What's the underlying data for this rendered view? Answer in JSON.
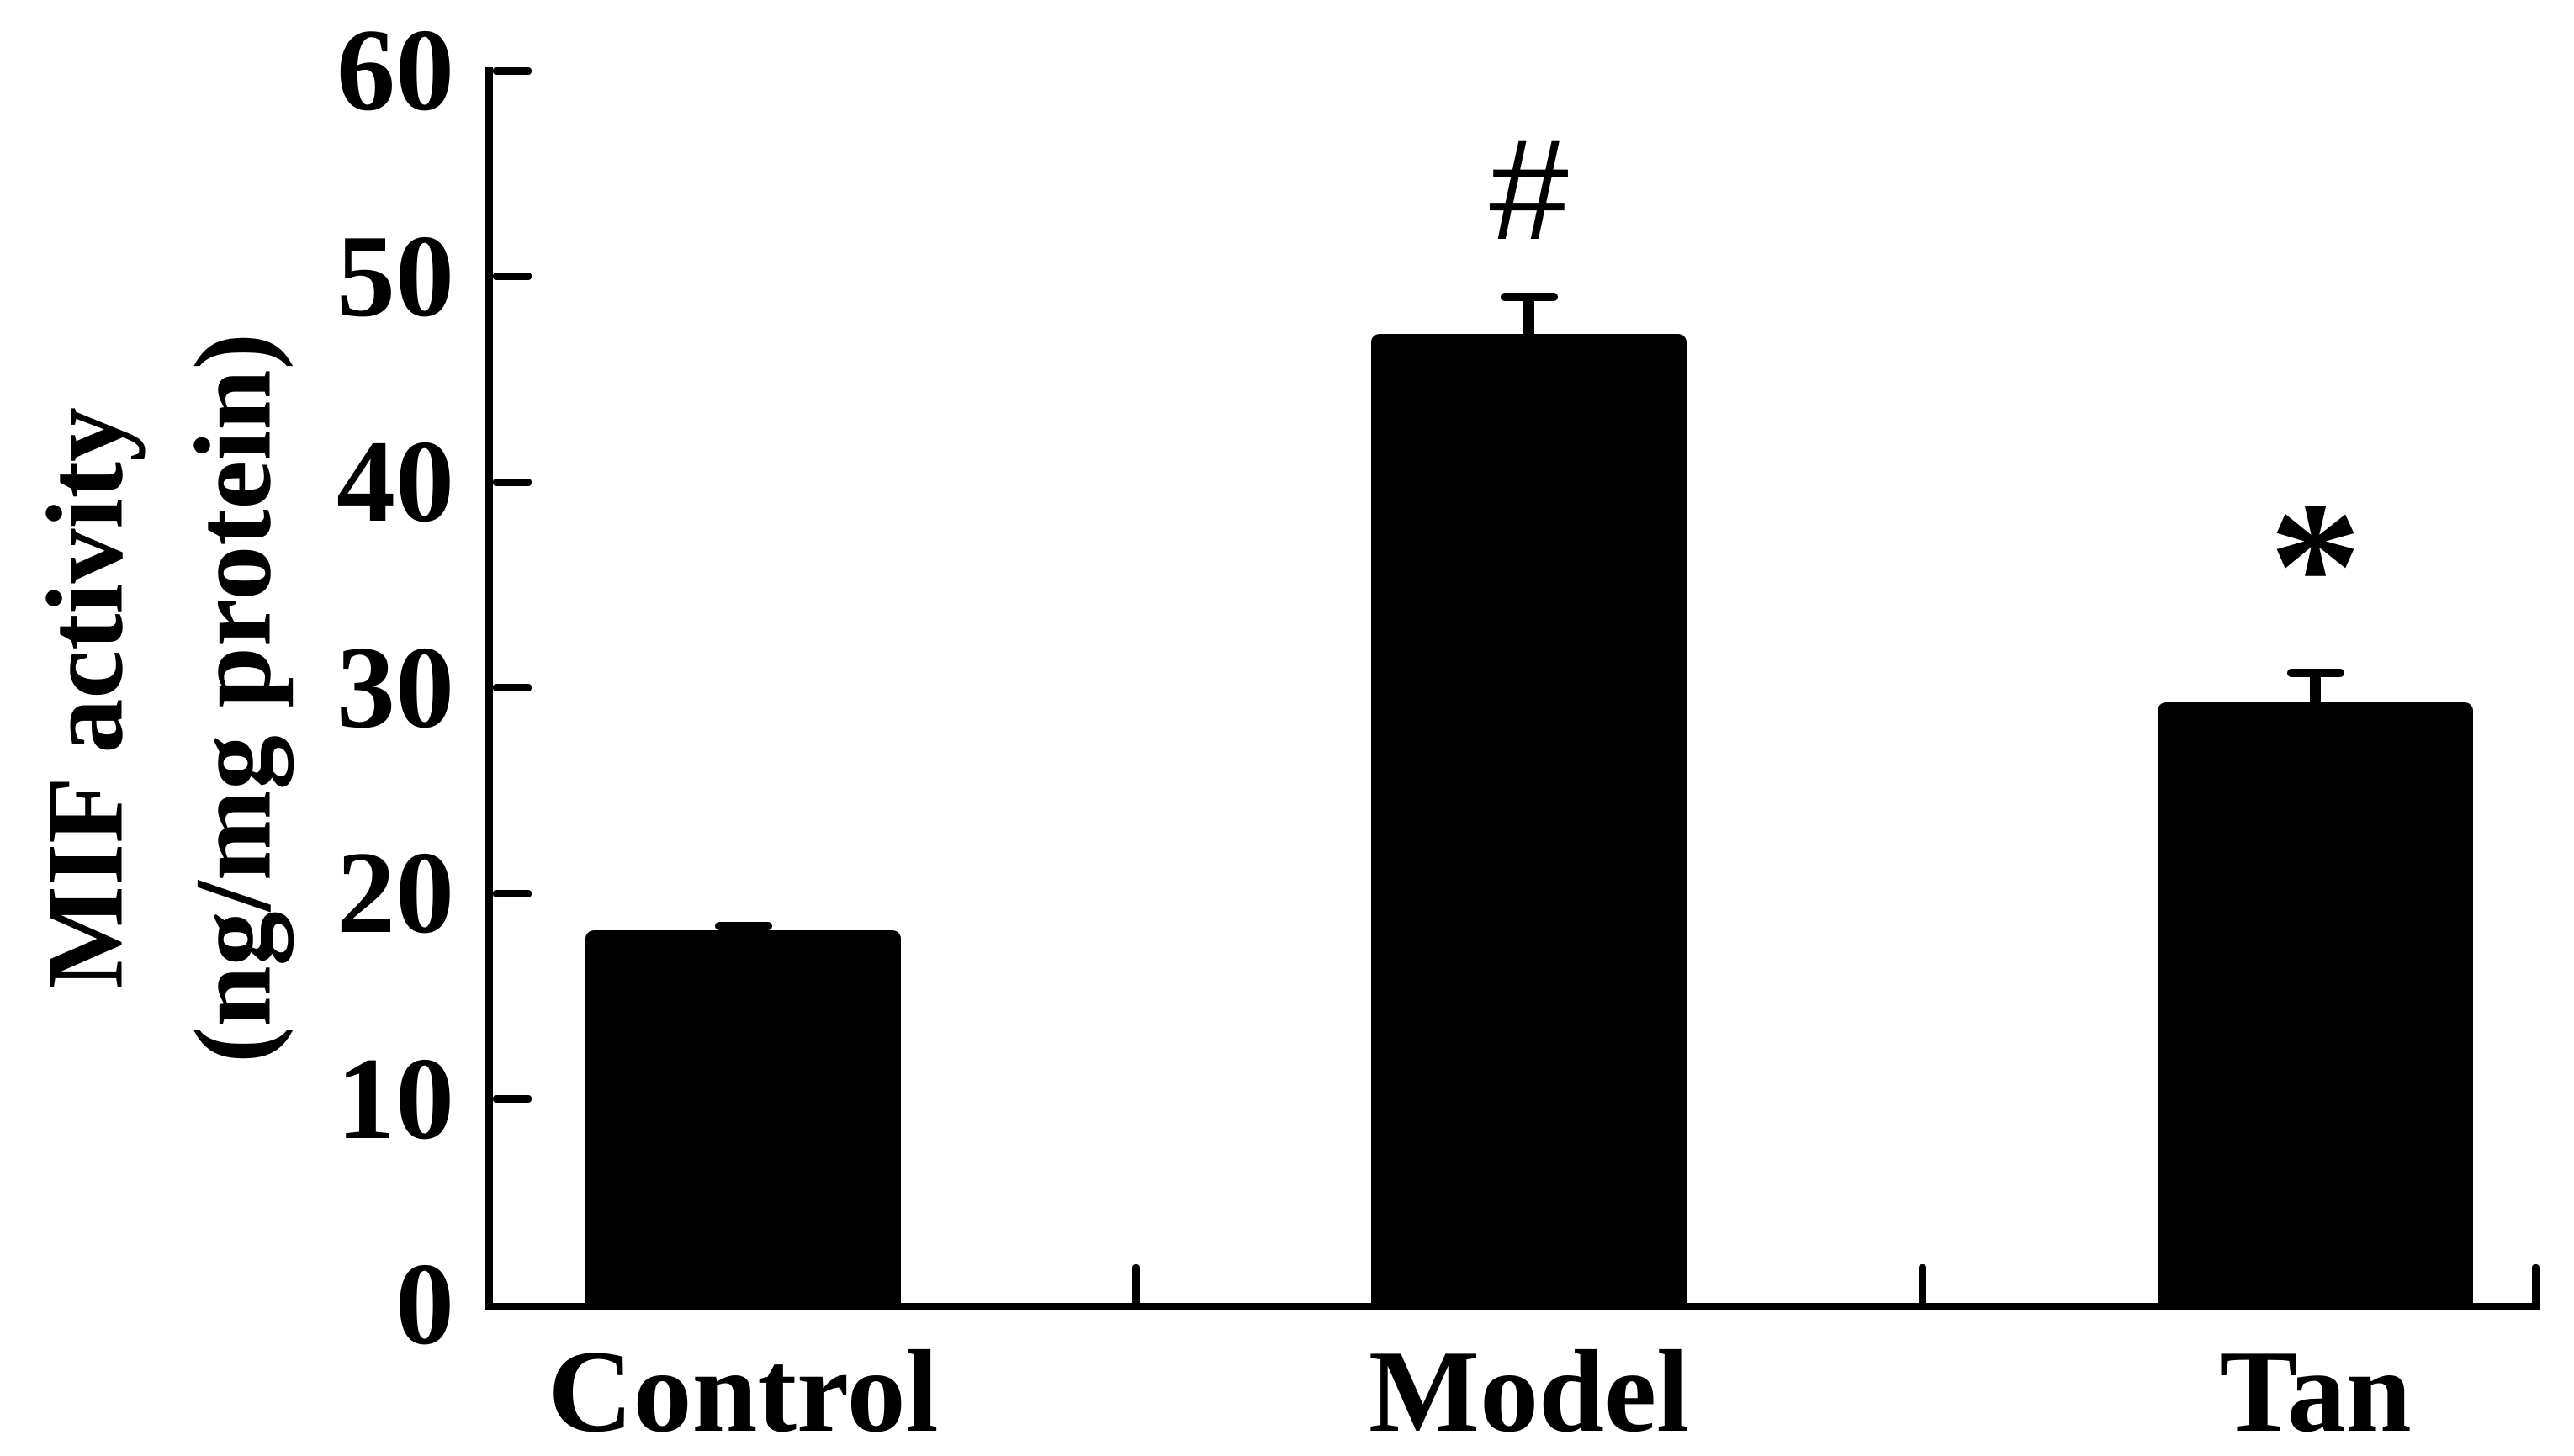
{
  "figure": {
    "background": "#ffffff",
    "ink_color": "#000000"
  },
  "chart_data": {
    "type": "bar",
    "title": "",
    "ylabel_lines": [
      "MIF activity",
      "(ng/mg protein)"
    ],
    "xlabel": "",
    "categories": [
      "Control",
      "Model",
      "Tan"
    ],
    "values": [
      18.2,
      47.2,
      29.3
    ],
    "error_plus": [
      0.4,
      2.0,
      1.6
    ],
    "annotations": [
      "",
      "#",
      "*"
    ],
    "yticks": [
      0,
      10,
      20,
      30,
      40,
      50,
      60
    ],
    "ylim": [
      0,
      60
    ],
    "bar_color": "#000000",
    "grid": false,
    "legend": false
  }
}
